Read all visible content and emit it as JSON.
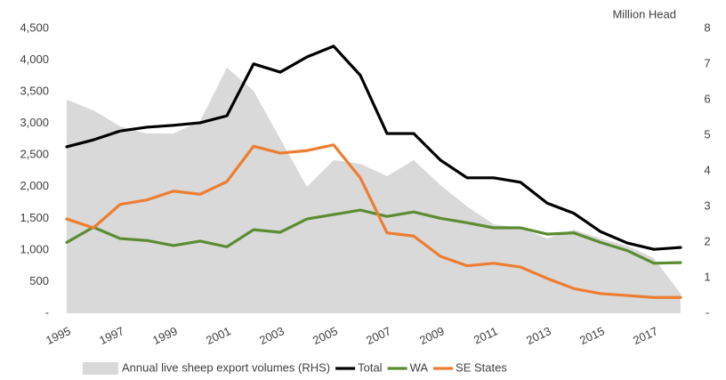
{
  "chart_data": {
    "type": "line",
    "x": [
      1995,
      1996,
      1997,
      1998,
      1999,
      2000,
      2001,
      2002,
      2003,
      2004,
      2005,
      2006,
      2007,
      2008,
      2009,
      2010,
      2011,
      2012,
      2013,
      2014,
      2015,
      2016,
      2017,
      2018
    ],
    "xlim": [
      1995,
      2018
    ],
    "xticks": [
      1995,
      1997,
      1999,
      2001,
      2003,
      2005,
      2007,
      2009,
      2011,
      2013,
      2015,
      2017
    ],
    "ylim": [
      0,
      4500
    ],
    "yticks": [
      {
        "value": 0,
        "label": "-"
      },
      500,
      {
        "value": 1000,
        "label": "1,000"
      },
      {
        "value": 1500,
        "label": "1,500"
      },
      {
        "value": 2000,
        "label": "2,000"
      },
      {
        "value": 2500,
        "label": "2,500"
      },
      {
        "value": 3000,
        "label": "3,000"
      },
      {
        "value": 3500,
        "label": "3,500"
      },
      {
        "value": 4000,
        "label": "4,000"
      },
      {
        "value": 4500,
        "label": "4,500"
      }
    ],
    "y2lim": [
      0,
      8
    ],
    "y2ticks": [
      {
        "value": 0,
        "label": "-"
      },
      1,
      2,
      3,
      4,
      5,
      6,
      7,
      8
    ],
    "y2_label": "Million Head",
    "grid": false,
    "legend": "bottom",
    "series": [
      {
        "name": "Annual live sheep export volumes (RHS)",
        "type": "area",
        "axis": "y2",
        "color": "#d9d9d9",
        "values": [
          6.0,
          5.7,
          5.25,
          5.05,
          5.05,
          5.4,
          6.9,
          6.25,
          4.9,
          3.55,
          4.3,
          4.2,
          3.85,
          4.3,
          3.6,
          3.0,
          2.5,
          2.4,
          2.1,
          2.35,
          2.1,
          1.9,
          1.55,
          0.55
        ]
      },
      {
        "name": "Total",
        "type": "line",
        "color": "#000000",
        "values": [
          2630,
          2740,
          2880,
          2940,
          2970,
          3010,
          3120,
          3940,
          3810,
          4050,
          4220,
          3760,
          2840,
          2840,
          2420,
          2140,
          2140,
          2070,
          1740,
          1580,
          1290,
          1110,
          1010,
          1040
        ]
      },
      {
        "name": "WA",
        "type": "line",
        "color": "#5b8c32",
        "values": [
          1120,
          1360,
          1180,
          1150,
          1070,
          1140,
          1050,
          1320,
          1280,
          1490,
          1560,
          1630,
          1530,
          1600,
          1500,
          1430,
          1350,
          1350,
          1250,
          1270,
          1120,
          990,
          790,
          800
        ]
      },
      {
        "name": "SE States",
        "type": "line",
        "color": "#ed7d31",
        "values": [
          1490,
          1350,
          1720,
          1790,
          1930,
          1880,
          2080,
          2640,
          2530,
          2570,
          2660,
          2140,
          1270,
          1220,
          900,
          750,
          790,
          730,
          550,
          390,
          310,
          280,
          250,
          250
        ]
      }
    ]
  }
}
